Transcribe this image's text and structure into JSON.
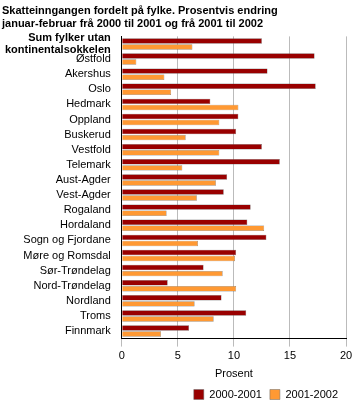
{
  "chart_data": {
    "type": "bar",
    "orientation": "horizontal",
    "title": [
      "Skatteinngangen fordelt på fylke. Prosentvis endring",
      "januar-februar frå 2000 til 2001 og frå 2001 til 2002"
    ],
    "categories": [
      "Sum fylker utan kontinentalsokkelen",
      "Østfold",
      "Akershus",
      "Oslo",
      "Hedmark",
      "Oppland",
      "Buskerud",
      "Vestfold",
      "Telemark",
      "Aust-Agder",
      "Vest-Agder",
      "Rogaland",
      "Hordaland",
      "Sogn og Fjordane",
      "Møre og Romsdal",
      "Sør-Trøndelag",
      "Nord-Trøndelag",
      "Nordland",
      "Troms",
      "Finnmark"
    ],
    "series": [
      {
        "name": "2000-2001",
        "color": "#990000",
        "values": [
          12.5,
          17.2,
          13.0,
          17.3,
          7.9,
          10.4,
          10.2,
          12.5,
          14.1,
          9.4,
          9.1,
          11.5,
          11.2,
          12.9,
          10.2,
          7.3,
          4.1,
          8.9,
          11.1,
          6.0
        ]
      },
      {
        "name": "2001-2002",
        "color": "#ff9933",
        "values": [
          6.3,
          1.3,
          3.8,
          4.4,
          10.4,
          8.7,
          5.7,
          8.7,
          5.4,
          8.4,
          6.7,
          4.0,
          12.7,
          6.8,
          10.1,
          9.0,
          10.2,
          6.5,
          8.2,
          3.5
        ]
      }
    ],
    "xlabel": "Prosent",
    "xlim": [
      0,
      20
    ],
    "xticks": [
      0,
      5,
      10,
      15,
      20
    ],
    "grid": true,
    "legend": "bottom"
  }
}
